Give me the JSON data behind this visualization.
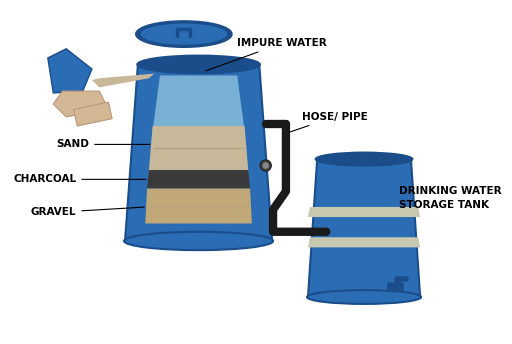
{
  "colors": {
    "background_color": "#ffffff",
    "blue_barrel": "#2a6db5",
    "blue_barrel_dark": "#1a4d8a",
    "blue_barrel_stripe": "#c8c8b0",
    "barrel_inner_bg": "#7ab0d4",
    "sand_color": "#c8b89a",
    "sand_dark": "#b8a080",
    "charcoal_color": "#3a3a3a",
    "gravel_color": "#c0a878",
    "pipe_color": "#1a1a1a",
    "lid_color": "#2a6db5",
    "lid_dark": "#1a4d8a",
    "hand_skin": "#d4b896",
    "glove_blue": "#2a6db5",
    "water_pour": "#c8b89a",
    "text_color": "#000000"
  },
  "labels": {
    "impure_water": "IMPURE WATER",
    "hose_pipe": "HOSE/ PIPE",
    "sand": "SAND",
    "charcoal": "CHARCOAL",
    "gravel": "GRAVEL",
    "storage_tank": "DRINKING WATER\nSTORAGE TANK"
  },
  "font_sizes": {
    "labels": 7.5,
    "storage_label": 7.5
  }
}
